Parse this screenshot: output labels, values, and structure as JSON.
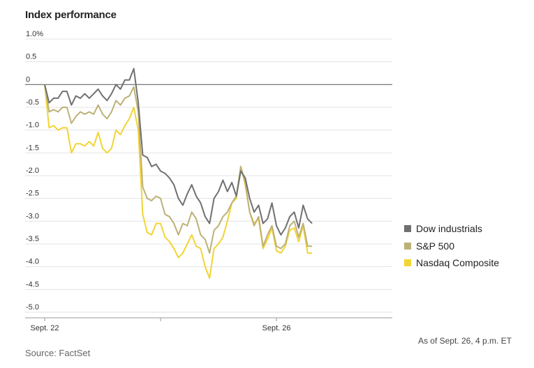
{
  "title": "Index performance",
  "source": "Source: FactSet",
  "as_of": "As of Sept. 26, 4 p.m. ET",
  "chart_data": {
    "type": "line",
    "title": "Index performance",
    "y_unit": "%",
    "ylim": [
      -5.0,
      1.0
    ],
    "y_ticks": [
      1.0,
      0.5,
      0,
      -0.5,
      -1.0,
      -1.5,
      -2.0,
      -2.5,
      -3.0,
      -3.5,
      -4.0,
      -4.5,
      -5.0
    ],
    "y_tick_labels": [
      "1.0%",
      "0.5",
      "0",
      "-0.5",
      "-1.0",
      "-1.5",
      "-2.0",
      "-2.5",
      "-3.0",
      "-3.5",
      "-4.0",
      "-4.5",
      "-5.0"
    ],
    "x_ticks": [
      0,
      26,
      52
    ],
    "x_tick_labels": [
      "Sept. 22",
      "",
      "Sept. 26"
    ],
    "xlim": [
      0,
      78
    ],
    "grid": "horizontal",
    "legend_position": "right",
    "series": [
      {
        "name": "Dow industrials",
        "color": "#707070",
        "values": [
          0,
          -0.4,
          -0.3,
          -0.3,
          -0.15,
          -0.15,
          -0.45,
          -0.25,
          -0.3,
          -0.2,
          -0.3,
          -0.2,
          -0.1,
          -0.25,
          -0.35,
          -0.2,
          0,
          -0.1,
          0.1,
          0.1,
          0.35,
          -0.4,
          -1.55,
          -1.6,
          -1.8,
          -1.75,
          -1.9,
          -1.95,
          -2.05,
          -2.2,
          -2.5,
          -2.65,
          -2.4,
          -2.2,
          -2.45,
          -2.6,
          -2.9,
          -3.05,
          -2.5,
          -2.35,
          -2.1,
          -2.35,
          -2.15,
          -2.45,
          -1.9,
          -2.05,
          -2.5,
          -2.8,
          -2.65,
          -3.05,
          -2.95,
          -2.6,
          -3.1,
          -3.3,
          -3.15,
          -2.9,
          -2.8,
          -3.15,
          -2.65,
          -2.95,
          -3.05
        ]
      },
      {
        "name": "S&P 500",
        "color": "#bdb177",
        "values": [
          0,
          -0.6,
          -0.55,
          -0.6,
          -0.5,
          -0.5,
          -0.85,
          -0.7,
          -0.6,
          -0.65,
          -0.6,
          -0.65,
          -0.45,
          -0.65,
          -0.75,
          -0.6,
          -0.35,
          -0.45,
          -0.3,
          -0.25,
          -0.05,
          -0.6,
          -2.25,
          -2.5,
          -2.55,
          -2.45,
          -2.5,
          -2.85,
          -2.9,
          -3.05,
          -3.3,
          -3.05,
          -3.1,
          -2.8,
          -2.95,
          -3.3,
          -3.4,
          -3.7,
          -3.2,
          -3.1,
          -2.9,
          -2.8,
          -2.6,
          -2.45,
          -1.8,
          -2.15,
          -2.8,
          -3.1,
          -2.9,
          -3.55,
          -3.3,
          -3.1,
          -3.55,
          -3.6,
          -3.5,
          -3.1,
          -3.0,
          -3.35,
          -3.05,
          -3.55,
          -3.55
        ]
      },
      {
        "name": "Nasdaq Composite",
        "color": "#f2d434",
        "values": [
          0,
          -0.95,
          -0.9,
          -1.0,
          -0.95,
          -0.95,
          -1.5,
          -1.3,
          -1.3,
          -1.35,
          -1.25,
          -1.35,
          -1.05,
          -1.4,
          -1.5,
          -1.4,
          -1.0,
          -1.1,
          -0.9,
          -0.75,
          -0.5,
          -1.0,
          -2.85,
          -3.25,
          -3.3,
          -3.05,
          -3.05,
          -3.35,
          -3.45,
          -3.6,
          -3.8,
          -3.7,
          -3.5,
          -3.3,
          -3.55,
          -3.6,
          -4.0,
          -4.25,
          -3.6,
          -3.5,
          -3.35,
          -3.0,
          -2.6,
          -2.5,
          -1.8,
          -2.2,
          -2.8,
          -3.05,
          -2.95,
          -3.6,
          -3.4,
          -3.15,
          -3.65,
          -3.7,
          -3.55,
          -3.2,
          -3.15,
          -3.45,
          -3.1,
          -3.7,
          -3.7
        ]
      }
    ]
  }
}
